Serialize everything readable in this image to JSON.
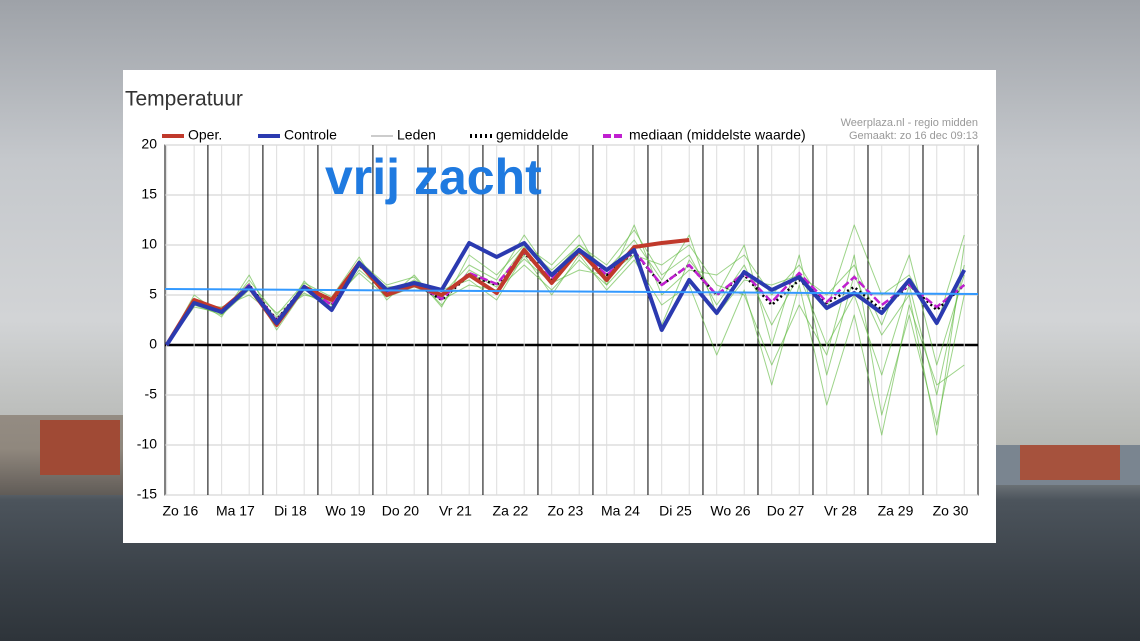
{
  "chart_data": {
    "type": "line",
    "title": "Temperatuur",
    "source": "Weerplaza.nl - regio midden",
    "created": "Gemaakt: zo 16 dec 09:13",
    "annotation": "vrij zacht",
    "xlim": [
      0.22,
      15
    ],
    "ylim": [
      -15,
      20
    ],
    "yticks": [
      -15,
      -10,
      -5,
      0,
      5,
      10,
      15,
      20
    ],
    "xticks": [
      {
        "value": 0.5,
        "label": "Zo 16"
      },
      {
        "value": 1.5,
        "label": "Ma 17"
      },
      {
        "value": 2.5,
        "label": "Di 18"
      },
      {
        "value": 3.5,
        "label": "Wo 19"
      },
      {
        "value": 4.5,
        "label": "Do 20"
      },
      {
        "value": 5.5,
        "label": "Vr 21"
      },
      {
        "value": 6.5,
        "label": "Za 22"
      },
      {
        "value": 7.5,
        "label": "Zo 23"
      },
      {
        "value": 8.5,
        "label": "Ma 24"
      },
      {
        "value": 9.5,
        "label": "Di 25"
      },
      {
        "value": 10.5,
        "label": "Wo 26"
      },
      {
        "value": 11.5,
        "label": "Do 27"
      },
      {
        "value": 12.5,
        "label": "Vr 28"
      },
      {
        "value": 13.5,
        "label": "Za 29"
      },
      {
        "value": 14.5,
        "label": "Zo 30"
      }
    ],
    "day_lines": [
      1,
      2,
      3,
      4,
      5,
      6,
      7,
      8,
      9,
      10,
      11,
      12,
      13,
      14
    ],
    "grid": true,
    "x": [
      0.25,
      0.75,
      1.25,
      1.75,
      2.25,
      2.75,
      3.25,
      3.75,
      4.25,
      4.75,
      5.25,
      5.75,
      6.25,
      6.75,
      7.25,
      7.75,
      8.25,
      8.75,
      9.25,
      9.75,
      10.25,
      10.75,
      11.25,
      11.75,
      12.25,
      12.75,
      13.25,
      13.75,
      14.25,
      14.75
    ],
    "series": [
      {
        "name": "Oper.",
        "color": "#c0392b",
        "width": 4,
        "dash": "none",
        "values": [
          0,
          4.5,
          3.5,
          5.8,
          2,
          5.8,
          4.5,
          8.2,
          5,
          6,
          5,
          7,
          5.2,
          9.5,
          6.2,
          9.5,
          6.5,
          9.8,
          10.2,
          10.5,
          null,
          null,
          null,
          null,
          null,
          null,
          null,
          null,
          null,
          null
        ]
      },
      {
        "name": "Controle",
        "color": "#2b3ab0",
        "width": 4,
        "dash": "none",
        "values": [
          0,
          4.2,
          3.3,
          5.8,
          2.2,
          5.8,
          3.5,
          8.2,
          5.5,
          6.2,
          5.5,
          10.2,
          8.8,
          10.2,
          7,
          9.5,
          7.5,
          9.5,
          1.5,
          6.5,
          3.2,
          7.3,
          5.5,
          6.8,
          3.7,
          5.2,
          3.2,
          6.5,
          2.2,
          7.5
        ]
      },
      {
        "name": "Leden",
        "color": "#5cb83a",
        "legend_color": "#cccccc",
        "width": 1,
        "dash": "none",
        "members": [
          [
            0,
            4,
            3,
            5.5,
            2.5,
            6,
            4,
            8.5,
            5,
            6.5,
            5,
            8,
            6.5,
            11,
            7,
            10,
            8,
            11.5,
            7,
            9,
            4,
            8,
            2,
            7,
            0,
            5,
            -3,
            6,
            -5,
            8
          ],
          [
            0,
            4.5,
            3.5,
            6.2,
            1.5,
            5.5,
            4.2,
            7.8,
            5.8,
            6,
            4.5,
            6,
            5.5,
            8,
            5.5,
            8.5,
            6,
            9,
            8,
            10,
            6,
            5,
            -2,
            4,
            -1,
            9,
            -7,
            3,
            -8,
            5
          ],
          [
            0,
            5,
            3,
            6.5,
            3,
            6.2,
            4.8,
            8.8,
            4.5,
            7,
            3.8,
            9,
            7,
            10,
            8,
            11,
            6,
            12,
            5,
            7.5,
            7,
            9,
            5,
            8,
            3.5,
            12,
            5,
            7,
            2,
            11
          ],
          [
            0,
            4,
            3.8,
            5,
            2.8,
            5.2,
            3.8,
            7.5,
            5.2,
            5.5,
            5.5,
            6.5,
            4.5,
            9,
            5,
            9,
            5.5,
            8.5,
            4,
            6,
            -1,
            5.5,
            -4,
            6,
            -6,
            3,
            -9,
            4,
            -4,
            -2
          ],
          [
            0,
            4.6,
            2.8,
            7,
            1.8,
            6.4,
            3.6,
            8.4,
            6,
            6.8,
            4,
            7.5,
            6,
            9.8,
            7.5,
            10,
            7.5,
            10.5,
            6.5,
            11,
            3,
            6.5,
            6,
            7,
            5,
            8,
            2,
            9,
            -2,
            7
          ],
          [
            0,
            3.8,
            3.2,
            5.8,
            3.2,
            5,
            4.4,
            7.2,
            4.8,
            5.8,
            4.8,
            7.2,
            5.8,
            8.6,
            6.2,
            7.5,
            7,
            9,
            2,
            8.5,
            5,
            10,
            0,
            9,
            -3,
            7,
            1,
            5,
            -9,
            10
          ]
        ]
      },
      {
        "name": "gemiddelde",
        "color": "#000000",
        "width": 2.5,
        "dash": "2,3",
        "values": [
          0,
          4.3,
          3.4,
          6,
          2.5,
          5.9,
          4,
          8,
          5.3,
          6.2,
          4.5,
          7,
          6,
          9.2,
          6.5,
          9.3,
          7,
          9.3,
          6,
          8,
          5,
          7,
          4,
          6.5,
          4.2,
          5.8,
          3.5,
          6,
          3.5,
          6
        ]
      },
      {
        "name": "mediaan (middelste waarde)",
        "color": "#c020d0",
        "width": 2.5,
        "dash": "8,3",
        "values": [
          0,
          4.3,
          3.4,
          6,
          2.4,
          5.9,
          4,
          8.1,
          5.3,
          6.2,
          4.6,
          7.2,
          6.1,
          9.3,
          6.6,
          9.4,
          7,
          9.4,
          6,
          8,
          5,
          7.2,
          4.3,
          7.2,
          4.3,
          6.8,
          4,
          6,
          3.8,
          6
        ]
      }
    ],
    "reference_line": {
      "x": [
        0.22,
        15
      ],
      "values": [
        5.6,
        5.1
      ],
      "color": "#3399ff"
    }
  }
}
